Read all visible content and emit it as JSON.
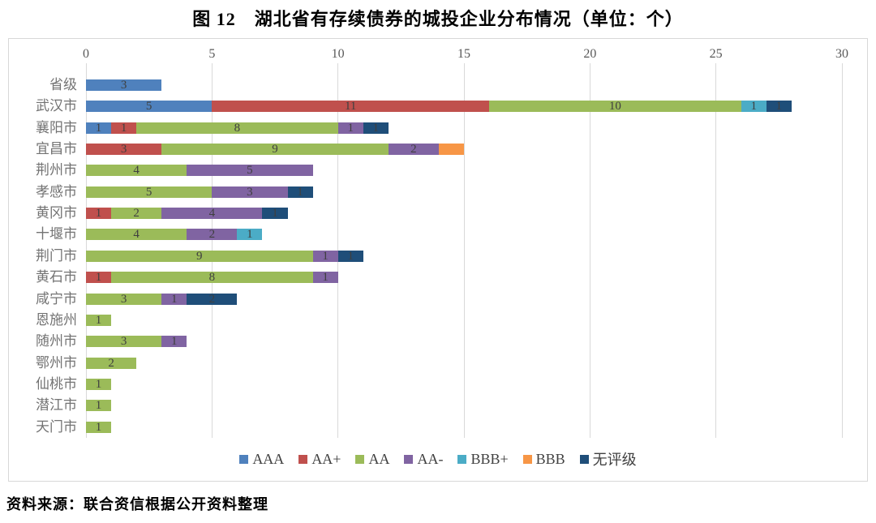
{
  "page": {
    "title": "图 12　湖北省有存续债券的城投企业分布情况（单位：个）",
    "source": "资料来源：联合资信根据公开资料整理"
  },
  "chart_data": {
    "type": "bar",
    "orientation": "horizontal-stacked",
    "title": "图 12　湖北省有存续债券的城投企业分布情况（单位：个）",
    "unit": "个",
    "xlim": [
      0,
      30
    ],
    "xticks": [
      0,
      5,
      10,
      15,
      20,
      25,
      30
    ],
    "grid": true,
    "legend_position": "bottom",
    "categories": [
      "省级",
      "武汉市",
      "襄阳市",
      "宜昌市",
      "荆州市",
      "孝感市",
      "黄冈市",
      "十堰市",
      "荆门市",
      "黄石市",
      "咸宁市",
      "恩施州",
      "随州市",
      "鄂州市",
      "仙桃市",
      "潜江市",
      "天门市"
    ],
    "series": [
      {
        "name": "AAA",
        "color": "#4F81BD",
        "show_labels": true,
        "values": [
          3,
          5,
          1,
          0,
          0,
          0,
          0,
          0,
          0,
          0,
          0,
          0,
          0,
          0,
          0,
          0,
          0
        ]
      },
      {
        "name": "AA+",
        "color": "#C0504D",
        "show_labels": true,
        "values": [
          0,
          11,
          1,
          3,
          0,
          0,
          1,
          0,
          0,
          1,
          0,
          0,
          0,
          0,
          0,
          0,
          0
        ]
      },
      {
        "name": "AA",
        "color": "#9BBB59",
        "show_labels": true,
        "values": [
          0,
          10,
          8,
          9,
          4,
          5,
          2,
          4,
          9,
          8,
          3,
          1,
          3,
          2,
          1,
          1,
          1
        ]
      },
      {
        "name": "AA-",
        "color": "#8064A2",
        "show_labels": true,
        "values": [
          0,
          0,
          1,
          2,
          5,
          3,
          4,
          2,
          1,
          1,
          1,
          0,
          1,
          0,
          0,
          0,
          0
        ]
      },
      {
        "name": "BBB+",
        "color": "#4BACC6",
        "show_labels": true,
        "values": [
          0,
          1,
          0,
          0,
          0,
          0,
          0,
          1,
          0,
          0,
          0,
          0,
          0,
          0,
          0,
          0,
          0
        ]
      },
      {
        "name": "BBB",
        "color": "#F79646",
        "show_labels": false,
        "values": [
          0,
          0,
          0,
          1,
          0,
          0,
          0,
          0,
          0,
          0,
          0,
          0,
          0,
          0,
          0,
          0,
          0
        ]
      },
      {
        "name": "无评级",
        "color": "#1F4E79",
        "show_labels": true,
        "values": [
          0,
          1,
          1,
          0,
          0,
          1,
          1,
          0,
          1,
          0,
          2,
          0,
          0,
          0,
          0,
          0,
          0
        ]
      }
    ],
    "colors": {
      "gridline": "#D9D9D9",
      "axis_text": "#595959",
      "category_text": "#737373",
      "data_label": "#3F3F3F"
    }
  }
}
